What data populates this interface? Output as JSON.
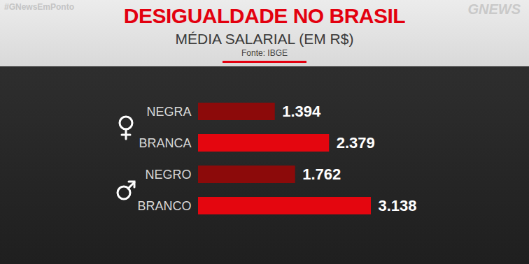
{
  "chart_data": {
    "type": "bar",
    "orientation": "horizontal",
    "title": "DESIGUALDADE NO BRASIL",
    "subtitle": "MÉDIA SALARIAL (EM R$)",
    "annotations": [
      "Fonte: IBGE",
      "#GNewsEmPonto",
      "GNEWS"
    ],
    "categories": [
      "NEGRA",
      "BRANCA",
      "NEGRO",
      "BRANCO"
    ],
    "values": [
      1394,
      2379,
      1762,
      3138
    ],
    "value_labels": [
      "1.394",
      "2.379",
      "1.762",
      "3.138"
    ],
    "colors": [
      "#8c0a0a",
      "#e4060f",
      "#8c0a0a",
      "#e4060f"
    ],
    "data_labels": true,
    "tick_labels": "y",
    "grid": false
  }
}
